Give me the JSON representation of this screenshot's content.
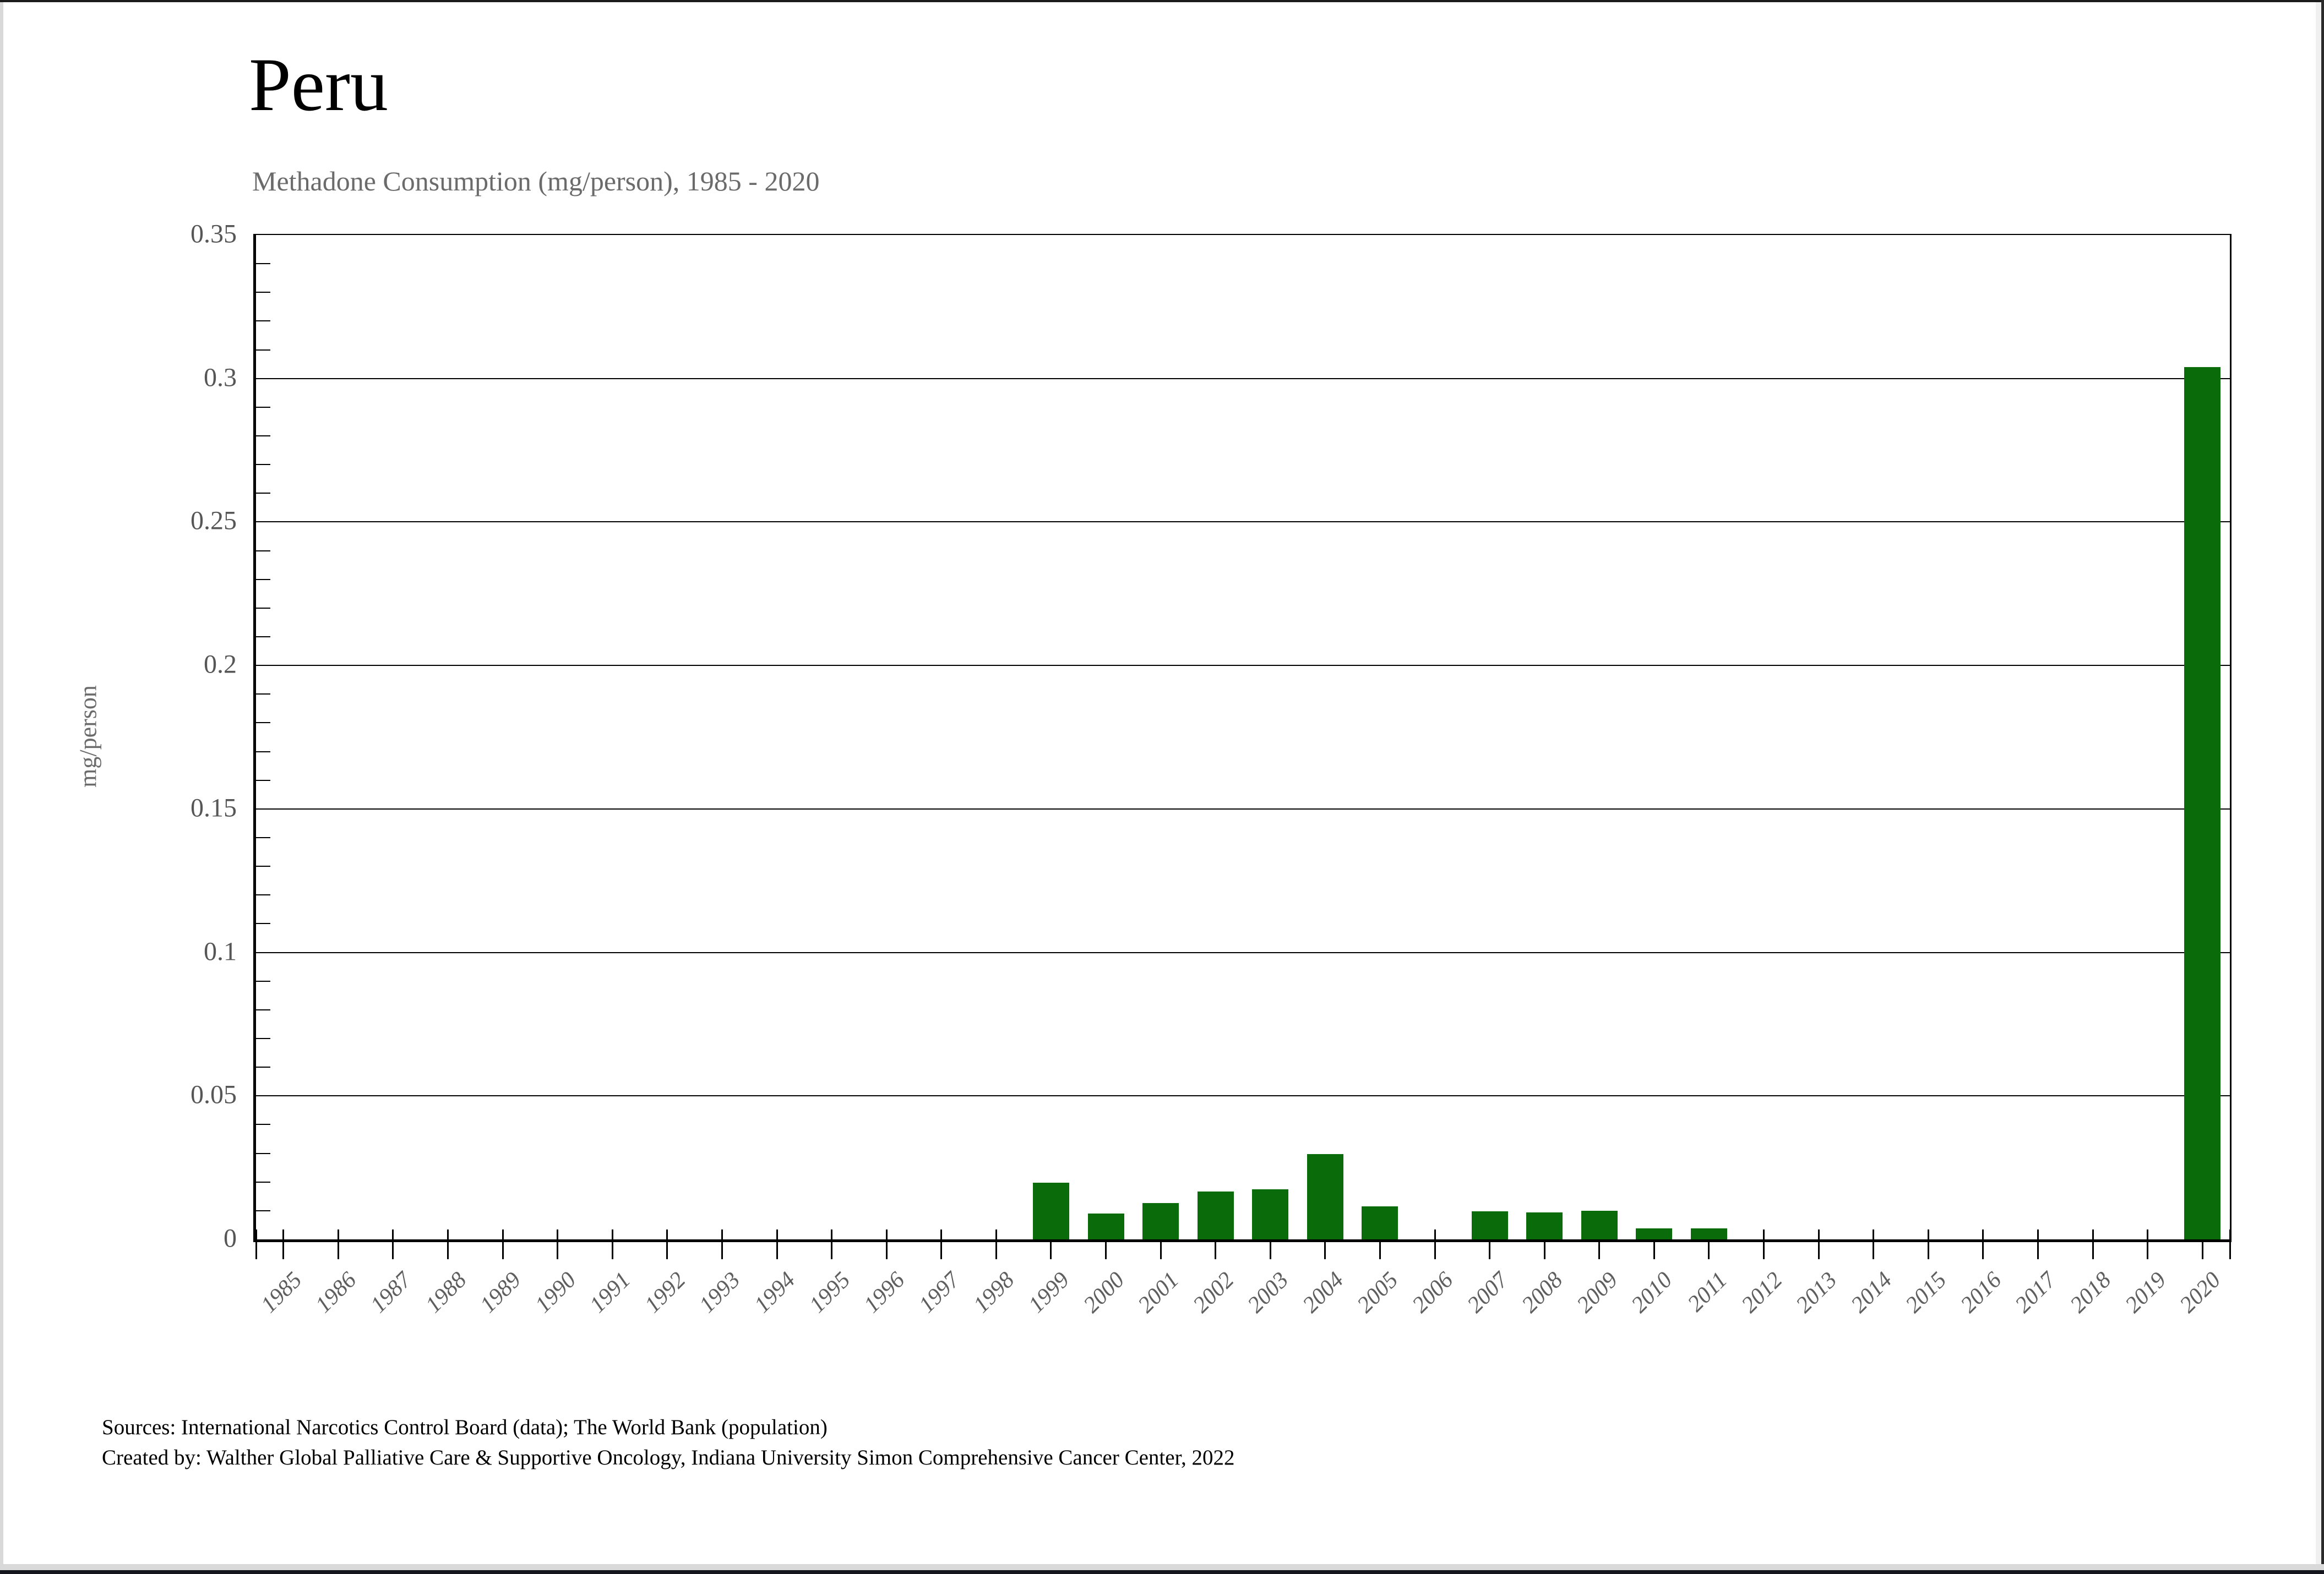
{
  "page": {
    "footer": {
      "line1": "Sources: International Narcotics Control Board (data); The World Bank (population)",
      "line2": "Created by: Walther Global Palliative Care & Supportive Oncology, Indiana University Simon Comprehensive Cancer Center, 2022"
    }
  },
  "chart_data": {
    "type": "bar",
    "title": "Peru",
    "subtitle": "Methadone Consumption (mg/person), 1985 - 2020",
    "xlabel": "",
    "ylabel": "mg/person",
    "ylim": [
      0,
      0.35
    ],
    "ytick_step": 0.05,
    "ytick_labels": [
      "0",
      "0.05",
      "0.1",
      "0.15",
      "0.2",
      "0.25",
      "0.3",
      "0.35"
    ],
    "y_minor_tick_step": 0.01,
    "grid": "horizontal-major-on",
    "legend_position": "none",
    "bar_color": "#0a6b0a",
    "categories": [
      1985,
      1986,
      1987,
      1988,
      1989,
      1990,
      1991,
      1992,
      1993,
      1994,
      1995,
      1996,
      1997,
      1998,
      1999,
      2000,
      2001,
      2002,
      2003,
      2004,
      2005,
      2006,
      2007,
      2008,
      2009,
      2010,
      2011,
      2012,
      2013,
      2014,
      2015,
      2016,
      2017,
      2018,
      2019,
      2020
    ],
    "values": [
      0,
      0,
      0,
      0,
      0,
      0,
      0,
      0,
      0,
      0,
      0,
      0,
      0,
      0,
      0.0198,
      0.0091,
      0.0127,
      0.0166,
      0.0175,
      0.0297,
      0.0116,
      0,
      0.0098,
      0.0094,
      0.0099,
      0.0039,
      0.0039,
      0,
      0,
      0,
      0,
      0,
      0,
      0,
      0,
      0.304
    ]
  }
}
